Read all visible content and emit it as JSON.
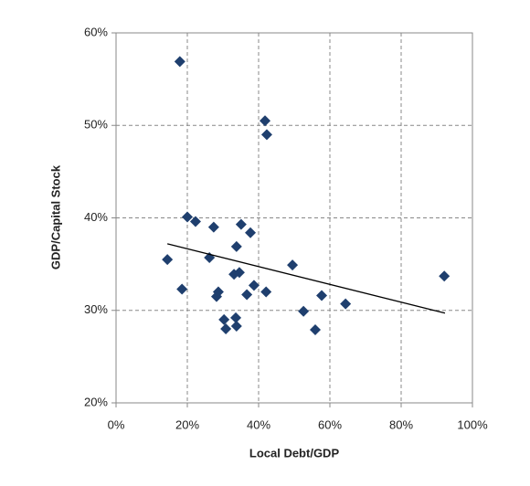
{
  "chart_data": {
    "type": "scatter",
    "x_label": "Local Debt/GDP",
    "y_label": "GDP/Capital Stock",
    "series": [
      {
        "color": "#1f3f6e",
        "x": [
          17.9,
          41.8,
          42.3,
          20.0,
          22.3,
          27.4,
          35.1,
          37.7,
          33.8,
          26.2,
          14.4,
          49.5,
          34.6,
          33.1,
          92.1,
          38.7,
          18.5,
          28.7,
          42.1,
          28.2,
          36.7,
          57.7,
          64.4,
          52.6,
          33.6,
          30.3,
          30.8,
          33.8,
          55.9
        ],
        "values": [
          56.9,
          50.5,
          49.0,
          40.1,
          39.6,
          39.0,
          39.3,
          38.4,
          36.9,
          35.7,
          35.5,
          34.9,
          34.1,
          33.9,
          33.7,
          32.7,
          32.3,
          32.0,
          32.0,
          31.5,
          31.7,
          31.6,
          30.7,
          29.9,
          29.2,
          29.0,
          28.0,
          28.3,
          27.9
        ]
      }
    ],
    "trendline": {
      "x": [
        14.4,
        92.3
      ],
      "y": [
        37.2,
        29.7
      ],
      "color": "#000000"
    },
    "xlim": [
      0,
      100
    ],
    "ylim": [
      20,
      60
    ],
    "xticks": [
      {
        "value": 0,
        "label": "0%"
      },
      {
        "value": 20,
        "label": "20%"
      },
      {
        "value": 40,
        "label": "40%"
      },
      {
        "value": 60,
        "label": "60%"
      },
      {
        "value": 80,
        "label": "80%"
      },
      {
        "value": 100,
        "label": "100%"
      }
    ],
    "yticks": [
      {
        "value": 20,
        "label": "20%"
      },
      {
        "value": 30,
        "label": "30%"
      },
      {
        "value": 40,
        "label": "40%"
      },
      {
        "value": 50,
        "label": "50%"
      },
      {
        "value": 60,
        "label": "60%"
      }
    ],
    "grid": true
  }
}
